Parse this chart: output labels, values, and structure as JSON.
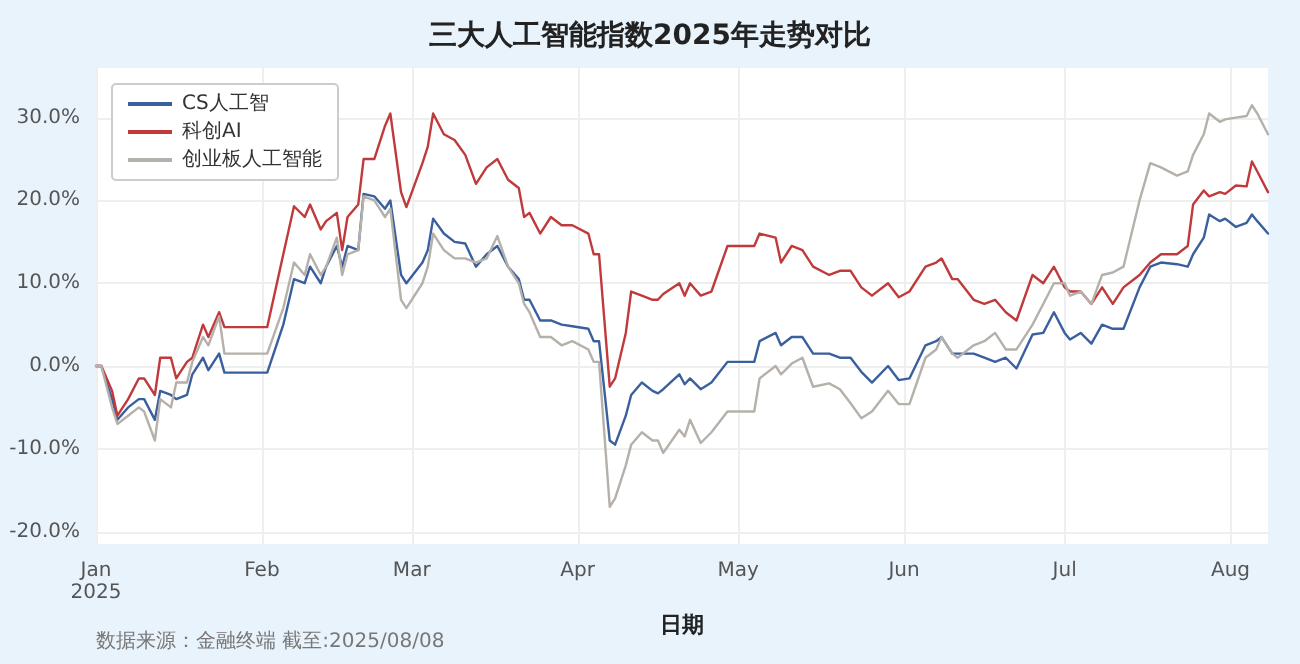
{
  "chart_data": {
    "type": "line",
    "title": "三大人工智能指数2025年走势对比",
    "xlabel": "日期",
    "annotations": [
      "数据来源：金融终端 截至:2025/08/08"
    ],
    "x": [
      "2025-01-01",
      "2025-01-02",
      "2025-01-04",
      "2025-01-05",
      "2025-01-07",
      "2025-01-09",
      "2025-01-10",
      "2025-01-12",
      "2025-01-13",
      "2025-01-15",
      "2025-01-16",
      "2025-01-18",
      "2025-01-19",
      "2025-01-21",
      "2025-01-22",
      "2025-01-24",
      "2025-01-25",
      "2025-02-02",
      "2025-02-05",
      "2025-02-07",
      "2025-02-09",
      "2025-02-10",
      "2025-02-12",
      "2025-02-13",
      "2025-02-15",
      "2025-02-16",
      "2025-02-17",
      "2025-02-19",
      "2025-02-20",
      "2025-02-22",
      "2025-02-24",
      "2025-02-25",
      "2025-02-27",
      "2025-02-28",
      "2025-03-03",
      "2025-03-04",
      "2025-03-05",
      "2025-03-07",
      "2025-03-09",
      "2025-03-11",
      "2025-03-13",
      "2025-03-15",
      "2025-03-17",
      "2025-03-19",
      "2025-03-21",
      "2025-03-22",
      "2025-03-23",
      "2025-03-25",
      "2025-03-27",
      "2025-03-29",
      "2025-03-31",
      "2025-04-03",
      "2025-04-04",
      "2025-04-05",
      "2025-04-07",
      "2025-04-08",
      "2025-04-10",
      "2025-04-11",
      "2025-04-13",
      "2025-04-15",
      "2025-04-16",
      "2025-04-17",
      "2025-04-20",
      "2025-04-21",
      "2025-04-22",
      "2025-04-24",
      "2025-04-26",
      "2025-04-29",
      "2025-05-04",
      "2025-05-05",
      "2025-05-08",
      "2025-05-09",
      "2025-05-11",
      "2025-05-13",
      "2025-05-15",
      "2025-05-18",
      "2025-05-20",
      "2025-05-22",
      "2025-05-24",
      "2025-05-26",
      "2025-05-29",
      "2025-05-31",
      "2025-06-02",
      "2025-06-05",
      "2025-06-07",
      "2025-06-08",
      "2025-06-10",
      "2025-06-11",
      "2025-06-14",
      "2025-06-16",
      "2025-06-18",
      "2025-06-20",
      "2025-06-22",
      "2025-06-25",
      "2025-06-27",
      "2025-06-29",
      "2025-07-01",
      "2025-07-02",
      "2025-07-04",
      "2025-07-06",
      "2025-07-08",
      "2025-07-10",
      "2025-07-12",
      "2025-07-15",
      "2025-07-17",
      "2025-07-19",
      "2025-07-22",
      "2025-07-24",
      "2025-07-25",
      "2025-07-27",
      "2025-07-28",
      "2025-07-30",
      "2025-07-31",
      "2025-08-02",
      "2025-08-04",
      "2025-08-05",
      "2025-08-06",
      "2025-08-08"
    ],
    "series": [
      {
        "name": "CS人工智",
        "color": "#3a5f9e",
        "values": [
          0,
          0,
          -4,
          -6.5,
          -5,
          -4,
          -4,
          -6.5,
          -3,
          -3.5,
          -4,
          -3.5,
          -1,
          1,
          -0.5,
          1.5,
          -0.8,
          -0.8,
          5,
          10.5,
          10,
          12,
          10,
          12,
          14.5,
          12,
          14.5,
          14,
          20.8,
          20.5,
          19,
          20,
          11,
          10,
          12.5,
          14,
          17.8,
          16,
          15,
          14.8,
          12,
          13.5,
          14.5,
          12,
          10.5,
          8,
          8,
          5.5,
          5.5,
          5,
          4.8,
          4.5,
          3,
          3,
          -9,
          -9.5,
          -6,
          -3.5,
          -2,
          -3,
          -3.3,
          -2.8,
          -1,
          -2.2,
          -1.5,
          -2.8,
          -2,
          0.5,
          0.5,
          3,
          4,
          2.5,
          3.5,
          3.5,
          1.5,
          1.5,
          1,
          1,
          -0.7,
          -2,
          0,
          -1.7,
          -1.5,
          2.5,
          3,
          3.5,
          1.5,
          1.5,
          1.5,
          1,
          0.5,
          1,
          -0.3,
          3.8,
          4,
          6.5,
          4,
          3.2,
          4,
          2.7,
          5,
          4.5,
          4.5,
          9.5,
          12,
          12.5,
          12.3,
          12,
          13.5,
          15.5,
          18.3,
          17.5,
          17.8,
          16.8,
          17.3,
          18.3,
          17.5,
          16
        ]
      },
      {
        "name": "科创AI",
        "color": "#c0393b",
        "values": [
          0,
          0,
          -3,
          -6,
          -4,
          -1.5,
          -1.5,
          -3.5,
          1,
          1,
          -1.5,
          0.5,
          1,
          5,
          3.5,
          6.5,
          4.7,
          4.7,
          13.5,
          19.3,
          18,
          19.5,
          16.5,
          17.5,
          18.5,
          14,
          18,
          19.5,
          25,
          25,
          29,
          30.5,
          21,
          19.2,
          24.5,
          26.5,
          30.5,
          28,
          27.3,
          25.5,
          22,
          24,
          25,
          22.5,
          21.5,
          18,
          18.5,
          16,
          18,
          17,
          17,
          16,
          13.5,
          13.5,
          -2.5,
          -1.5,
          4,
          9,
          8.5,
          8,
          8,
          8.7,
          10,
          8.5,
          10,
          8.5,
          9,
          14.5,
          14.5,
          16,
          15.5,
          12.5,
          14.5,
          14,
          12,
          11,
          11.5,
          11.5,
          9.5,
          8.5,
          10,
          8.3,
          9,
          12,
          12.5,
          13,
          10.5,
          10.5,
          8,
          7.5,
          8,
          6.5,
          5.5,
          11,
          10,
          12,
          9.5,
          9,
          9,
          7.5,
          9.5,
          7.5,
          9.5,
          11,
          12.5,
          13.5,
          13.5,
          14.5,
          19.5,
          21.2,
          20.5,
          21,
          20.8,
          21.8,
          21.7,
          24.7,
          23.5,
          21
        ]
      },
      {
        "name": "创业板人工智能",
        "color": "#b5b0aa",
        "values": [
          0,
          0,
          -5,
          -7,
          -6,
          -5,
          -5.5,
          -9,
          -4,
          -5,
          -2,
          -2,
          0.5,
          3.5,
          2.5,
          6,
          1.5,
          1.5,
          7,
          12.5,
          11,
          13.5,
          11,
          12,
          15.5,
          11,
          13.5,
          14,
          20.5,
          20,
          18,
          19,
          8,
          7,
          10,
          12,
          16,
          14,
          13,
          13,
          12.5,
          13,
          15.7,
          12,
          10,
          7.5,
          6.5,
          3.5,
          3.5,
          2.5,
          3,
          2,
          0.5,
          0.5,
          -17,
          -16,
          -12,
          -9.5,
          -8,
          -9,
          -9,
          -10.5,
          -7.7,
          -8.5,
          -6.5,
          -9.3,
          -8,
          -5.5,
          -5.5,
          -1.5,
          0,
          -1,
          0.3,
          1,
          -2.5,
          -2.1,
          -2.8,
          -4.5,
          -6.3,
          -5.5,
          -3,
          -4.6,
          -4.6,
          1,
          2,
          3.5,
          1.5,
          1,
          2.5,
          3,
          4,
          2,
          2,
          5,
          7.5,
          10,
          10,
          8.5,
          9,
          7.5,
          11,
          11.3,
          12,
          20,
          24.5,
          24,
          23,
          23.5,
          25.5,
          28,
          30.5,
          29.5,
          29.8,
          30,
          30.2,
          31.5,
          30.5,
          28
        ]
      }
    ],
    "xlim": [
      "2025-01-01",
      "2025-08-08"
    ],
    "xticks": [
      {
        "value": "2025-01-01",
        "label": "Jan\n2025"
      },
      {
        "value": "2025-02-01",
        "label": "Feb"
      },
      {
        "value": "2025-03-01",
        "label": "Mar"
      },
      {
        "value": "2025-04-01",
        "label": "Apr"
      },
      {
        "value": "2025-05-01",
        "label": "May"
      },
      {
        "value": "2025-06-01",
        "label": "Jun"
      },
      {
        "value": "2025-07-01",
        "label": "Jul"
      },
      {
        "value": "2025-08-01",
        "label": "Aug"
      }
    ],
    "ylim": [
      -21.5,
      36
    ],
    "yticks": [
      {
        "value": -20,
        "label": "-20.0%"
      },
      {
        "value": -10,
        "label": "-10.0%"
      },
      {
        "value": 0,
        "label": "0.0%"
      },
      {
        "value": 10,
        "label": "10.0%"
      },
      {
        "value": 20,
        "label": "20.0%"
      },
      {
        "value": 30,
        "label": "30.0%"
      }
    ],
    "grid": true,
    "legend": "top left",
    "marker": "none",
    "line_style": "solid"
  }
}
